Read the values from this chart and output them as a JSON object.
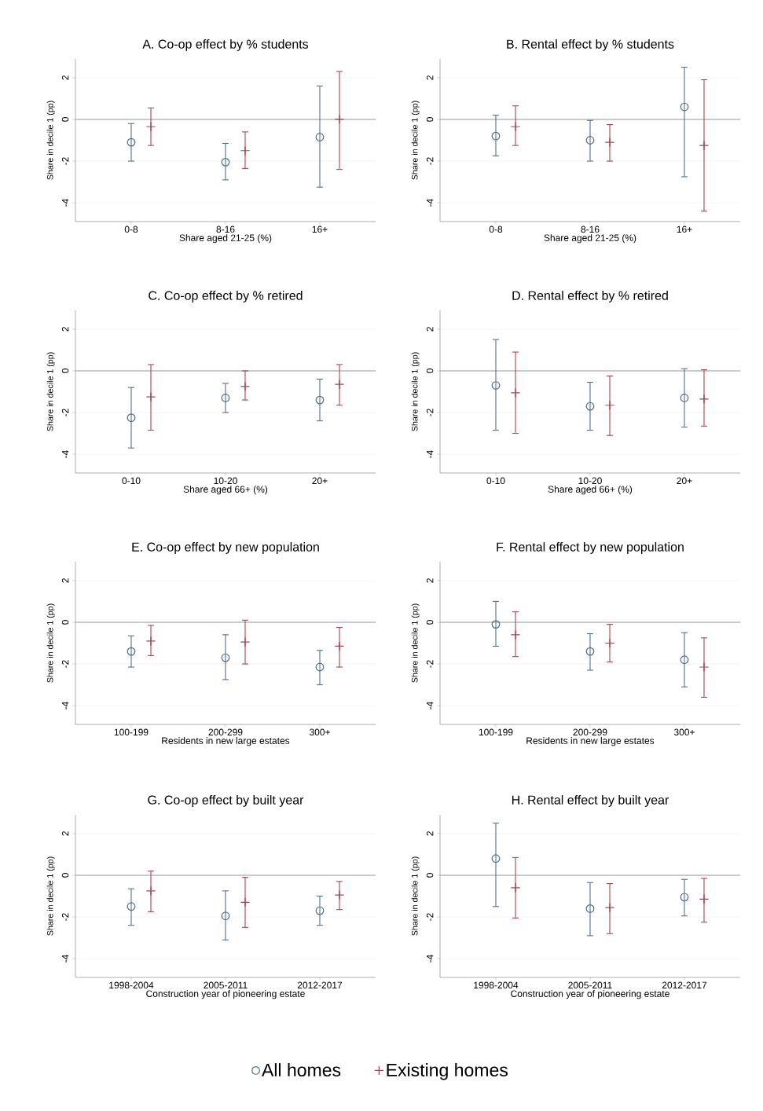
{
  "chart_data": [
    {
      "type": "scatter",
      "title": "A. Co-op effect by % students",
      "xlabel": "Share aged 21-25 (%)",
      "ylabel": "Share in decile 1 (pp)",
      "categories": [
        "0-8",
        "8-16",
        "16+"
      ],
      "ylim": [
        -4.9,
        2.9
      ],
      "yticks": [
        -4,
        -2,
        0,
        2
      ],
      "grid": "y",
      "ref_lines": [
        {
          "axis": "y",
          "value": 0,
          "color": "#999999"
        }
      ],
      "series": [
        {
          "color": "#4e6d8c",
          "marker": "circle",
          "values": [
            -1.1,
            -2.05,
            -0.85
          ],
          "errors": [
            [
              -2.0,
              -0.2
            ],
            [
              -2.9,
              -1.15
            ],
            [
              -3.25,
              1.6
            ]
          ]
        },
        {
          "color": "#a8404f",
          "marker": "cross",
          "values": [
            -0.35,
            -1.5,
            0
          ],
          "errors": [
            [
              -1.25,
              0.55
            ],
            [
              -2.35,
              -0.6
            ],
            [
              -2.4,
              2.3
            ]
          ]
        }
      ]
    },
    {
      "type": "scatter",
      "title": "B. Rental effect by % students",
      "xlabel": "Share aged 21-25 (%)",
      "ylabel": "Share in decile 1 (pp)",
      "categories": [
        "0-8",
        "8-16",
        "16+"
      ],
      "ylim": [
        -4.9,
        2.9
      ],
      "yticks": [
        -4,
        -2,
        0,
        2
      ],
      "grid": "y",
      "ref_lines": [
        {
          "axis": "y",
          "value": 0,
          "color": "#999999"
        }
      ],
      "series": [
        {
          "color": "#4e6d8c",
          "marker": "circle",
          "values": [
            -0.8,
            -1.0,
            0.6
          ],
          "errors": [
            [
              -1.75,
              0.2
            ],
            [
              -2.0,
              -0.05
            ],
            [
              -2.75,
              2.5
            ]
          ]
        },
        {
          "color": "#a8404f",
          "marker": "cross",
          "values": [
            -0.35,
            -1.1,
            -1.25
          ],
          "errors": [
            [
              -1.25,
              0.65
            ],
            [
              -2.0,
              -0.25
            ],
            [
              -4.4,
              1.9
            ]
          ]
        }
      ]
    },
    {
      "type": "scatter",
      "title": "C. Co-op effect by % retired",
      "xlabel": "Share aged 66+ (%)",
      "ylabel": "Share in decile 1 (pp)",
      "categories": [
        "0-10",
        "10-20",
        "20+"
      ],
      "ylim": [
        -4.9,
        2.9
      ],
      "yticks": [
        -4,
        -2,
        0,
        2
      ],
      "grid": "y",
      "ref_lines": [
        {
          "axis": "y",
          "value": 0,
          "color": "#999999"
        }
      ],
      "series": [
        {
          "color": "#4e6d8c",
          "marker": "circle",
          "values": [
            -2.25,
            -1.3,
            -1.4
          ],
          "errors": [
            [
              -3.7,
              -0.8
            ],
            [
              -2.0,
              -0.6
            ],
            [
              -2.4,
              -0.4
            ]
          ]
        },
        {
          "color": "#a8404f",
          "marker": "cross",
          "values": [
            -1.25,
            -0.75,
            -0.65
          ],
          "errors": [
            [
              -2.85,
              0.3
            ],
            [
              -1.4,
              0
            ],
            [
              -1.65,
              0.3
            ]
          ]
        }
      ]
    },
    {
      "type": "scatter",
      "title": "D. Rental effect by % retired",
      "xlabel": "Share aged 66+ (%)",
      "ylabel": "Share in decile 1 (pp)",
      "categories": [
        "0-10",
        "10-20",
        "20+"
      ],
      "ylim": [
        -4.9,
        2.9
      ],
      "yticks": [
        -4,
        -2,
        0,
        2
      ],
      "grid": "y",
      "ref_lines": [
        {
          "axis": "y",
          "value": 0,
          "color": "#999999"
        }
      ],
      "series": [
        {
          "color": "#4e6d8c",
          "marker": "circle",
          "values": [
            -0.7,
            -1.7,
            -1.3
          ],
          "errors": [
            [
              -2.85,
              1.5
            ],
            [
              -2.85,
              -0.55
            ],
            [
              -2.7,
              0.1
            ]
          ]
        },
        {
          "color": "#a8404f",
          "marker": "cross",
          "values": [
            -1.05,
            -1.65,
            -1.35
          ],
          "errors": [
            [
              -3.0,
              0.9
            ],
            [
              -3.1,
              -0.25
            ],
            [
              -2.65,
              0.05
            ]
          ]
        }
      ]
    },
    {
      "type": "scatter",
      "title": "E. Co-op effect by new population",
      "xlabel": "Residents in new large estates",
      "ylabel": "Share in decile 1 (pp)",
      "categories": [
        "100-199",
        "200-299",
        "300+"
      ],
      "ylim": [
        -4.9,
        2.9
      ],
      "yticks": [
        -4,
        -2,
        0,
        2
      ],
      "grid": "y",
      "ref_lines": [
        {
          "axis": "y",
          "value": 0,
          "color": "#999999"
        }
      ],
      "series": [
        {
          "color": "#4e6d8c",
          "marker": "circle",
          "values": [
            -1.4,
            -1.7,
            -2.15
          ],
          "errors": [
            [
              -2.15,
              -0.65
            ],
            [
              -2.75,
              -0.6
            ],
            [
              -3.0,
              -1.35
            ]
          ]
        },
        {
          "color": "#a8404f",
          "marker": "cross",
          "values": [
            -0.9,
            -0.95,
            -1.15
          ],
          "errors": [
            [
              -1.6,
              -0.15
            ],
            [
              -2.0,
              0.1
            ],
            [
              -2.15,
              -0.25
            ]
          ]
        }
      ]
    },
    {
      "type": "scatter",
      "title": "F. Rental effect by new population",
      "xlabel": "Residents in new large estates",
      "ylabel": "Share in decile 1 (pp)",
      "categories": [
        "100-199",
        "200-299",
        "300+"
      ],
      "ylim": [
        -4.9,
        2.9
      ],
      "yticks": [
        -4,
        -2,
        0,
        2
      ],
      "grid": "y",
      "ref_lines": [
        {
          "axis": "y",
          "value": 0,
          "color": "#999999"
        }
      ],
      "series": [
        {
          "color": "#4e6d8c",
          "marker": "circle",
          "values": [
            -0.1,
            -1.4,
            -1.8
          ],
          "errors": [
            [
              -1.15,
              1.0
            ],
            [
              -2.3,
              -0.55
            ],
            [
              -3.1,
              -0.5
            ]
          ]
        },
        {
          "color": "#a8404f",
          "marker": "cross",
          "values": [
            -0.6,
            -1.0,
            -2.15
          ],
          "errors": [
            [
              -1.65,
              0.5
            ],
            [
              -1.9,
              -0.1
            ],
            [
              -3.6,
              -0.75
            ]
          ]
        }
      ]
    },
    {
      "type": "scatter",
      "title": "G. Co-op effect by built year",
      "xlabel": "Construction year of pioneering estate",
      "ylabel": "Share in decile 1 (pp)",
      "categories": [
        "1998-2004",
        "2005-2011",
        "2012-2017"
      ],
      "ylim": [
        -4.9,
        2.9
      ],
      "yticks": [
        -4,
        -2,
        0,
        2
      ],
      "grid": "y",
      "ref_lines": [
        {
          "axis": "y",
          "value": 0,
          "color": "#999999"
        }
      ],
      "series": [
        {
          "color": "#4e6d8c",
          "marker": "circle",
          "values": [
            -1.5,
            -1.95,
            -1.7
          ],
          "errors": [
            [
              -2.4,
              -0.65
            ],
            [
              -3.1,
              -0.75
            ],
            [
              -2.4,
              -1.0
            ]
          ]
        },
        {
          "color": "#a8404f",
          "marker": "cross",
          "values": [
            -0.75,
            -1.3,
            -0.95
          ],
          "errors": [
            [
              -1.75,
              0.2
            ],
            [
              -2.5,
              -0.1
            ],
            [
              -1.65,
              -0.3
            ]
          ]
        }
      ]
    },
    {
      "type": "scatter",
      "title": "H. Rental effect by built year",
      "xlabel": "Construction year of pioneering estate",
      "ylabel": "Share in decile 1 (pp)",
      "categories": [
        "1998-2004",
        "2005-2011",
        "2012-2017"
      ],
      "ylim": [
        -4.9,
        2.9
      ],
      "yticks": [
        -4,
        -2,
        0,
        2
      ],
      "grid": "y",
      "legend": "bottom",
      "ref_lines": [
        {
          "axis": "y",
          "value": 0,
          "color": "#999999"
        }
      ],
      "series": [
        {
          "name": "All homes",
          "color": "#4e6d8c",
          "marker": "circle",
          "values": [
            0.8,
            -1.6,
            -1.05
          ],
          "errors": [
            [
              -1.5,
              2.5
            ],
            [
              -2.9,
              -0.35
            ],
            [
              -1.95,
              -0.2
            ]
          ]
        },
        {
          "name": "Existing homes",
          "color": "#a8404f",
          "marker": "cross",
          "values": [
            -0.6,
            -1.55,
            -1.15
          ],
          "errors": [
            [
              -2.05,
              0.85
            ],
            [
              -2.8,
              -0.4
            ],
            [
              -2.25,
              -0.15
            ]
          ]
        }
      ]
    }
  ]
}
